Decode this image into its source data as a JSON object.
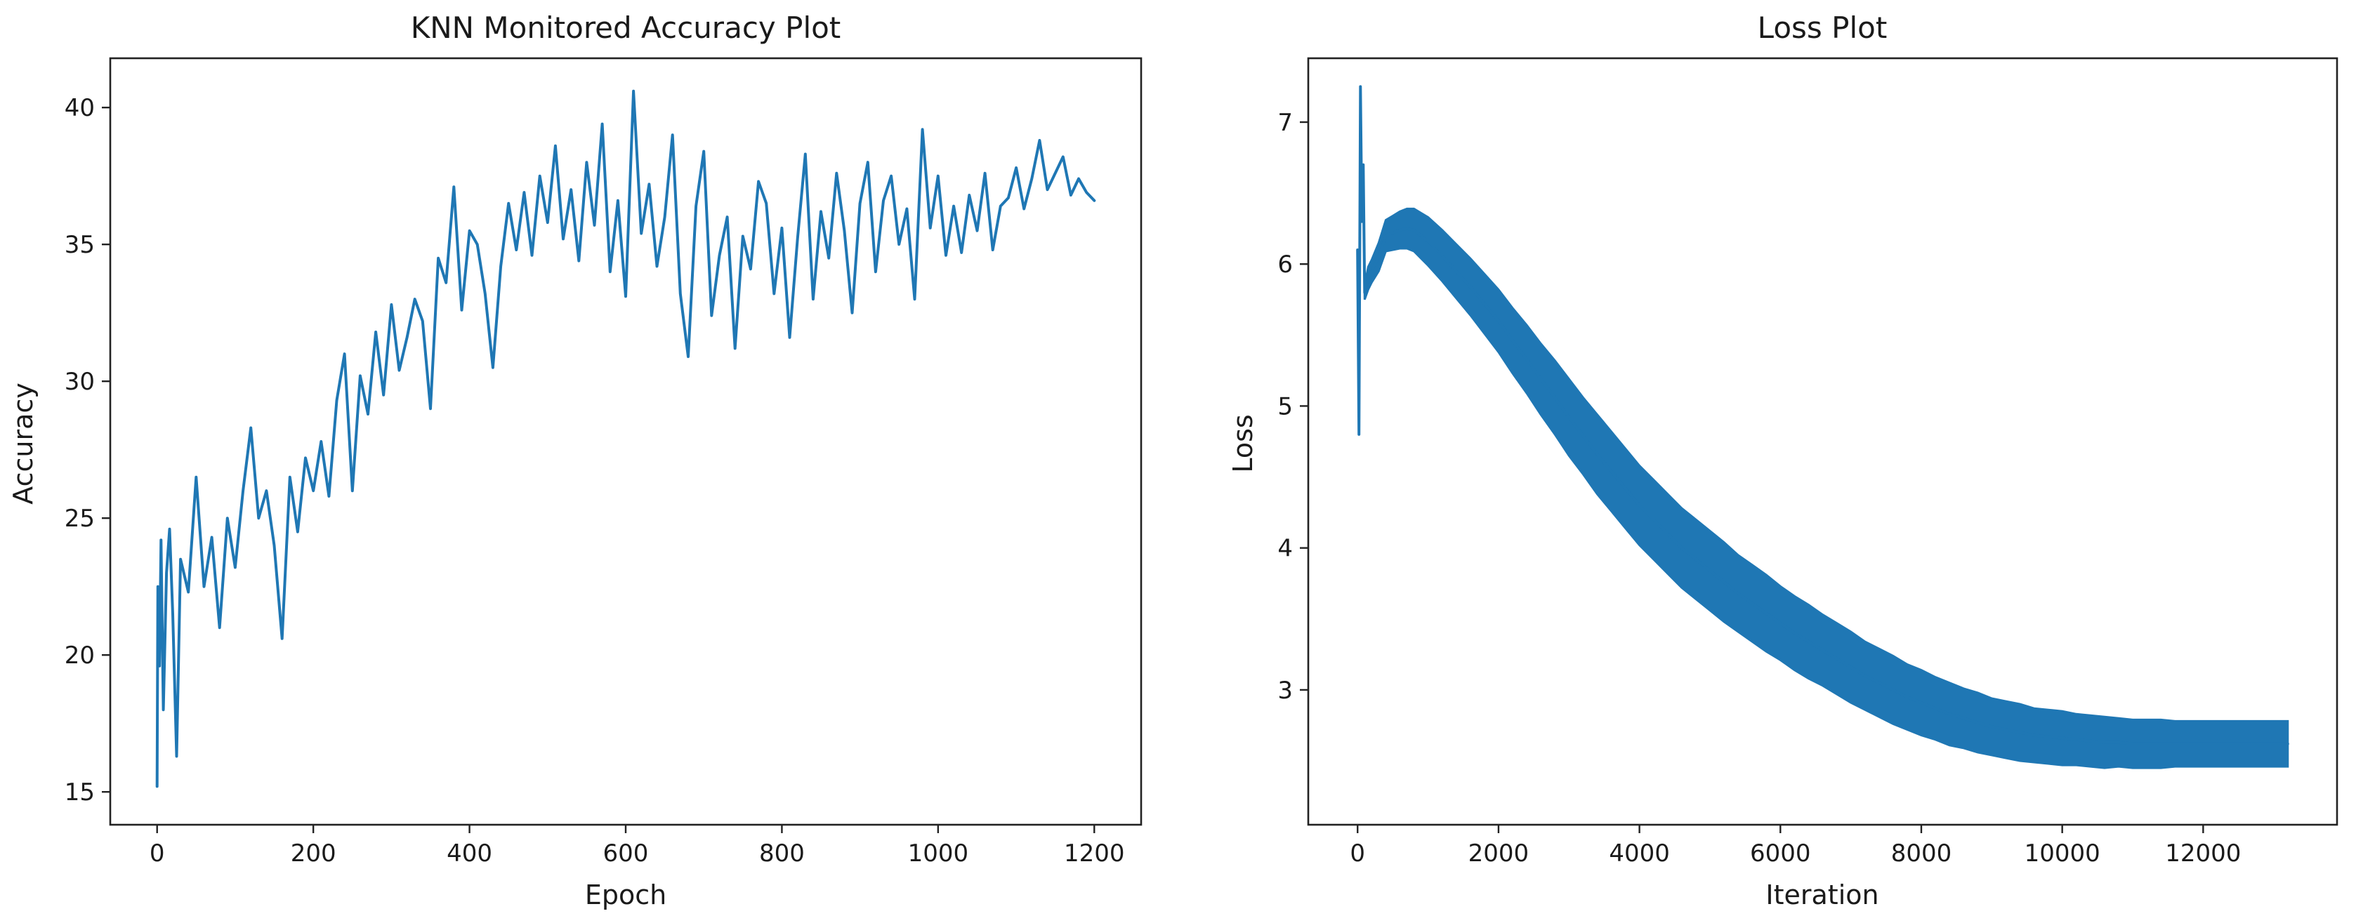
{
  "chart_data": [
    {
      "type": "line",
      "title": "KNN Monitored Accuracy Plot",
      "xlabel": "Epoch",
      "ylabel": "Accuracy",
      "xlim": [
        -60,
        1260
      ],
      "ylim": [
        13.8,
        41.8
      ],
      "xticks": [
        "0",
        "200",
        "400",
        "600",
        "800",
        "1000",
        "1200"
      ],
      "yticks": [
        "15",
        "20",
        "25",
        "30",
        "35",
        "40"
      ],
      "grid": false,
      "legend": "none",
      "color": "#1f77b4",
      "series": [
        {
          "x": [
            0,
            1,
            3,
            5,
            8,
            12,
            16,
            20,
            25,
            30,
            40,
            50,
            60,
            70,
            80,
            90,
            100,
            110,
            120,
            130,
            140,
            150,
            160,
            170,
            180,
            190,
            200,
            210,
            220,
            230,
            240,
            250,
            260,
            270,
            280,
            290,
            300,
            310,
            320,
            330,
            340,
            350,
            360,
            370,
            380,
            390,
            400,
            410,
            420,
            430,
            440,
            450,
            460,
            470,
            480,
            490,
            500,
            510,
            520,
            530,
            540,
            550,
            560,
            570,
            580,
            590,
            600,
            610,
            620,
            630,
            640,
            650,
            660,
            670,
            680,
            690,
            700,
            710,
            720,
            730,
            740,
            750,
            760,
            770,
            780,
            790,
            800,
            810,
            820,
            830,
            840,
            850,
            860,
            870,
            880,
            890,
            900,
            910,
            920,
            930,
            940,
            950,
            960,
            970,
            980,
            990,
            1000,
            1010,
            1020,
            1030,
            1040,
            1050,
            1060,
            1070,
            1080,
            1090,
            1100,
            1110,
            1120,
            1130,
            1140,
            1150,
            1160,
            1170,
            1180,
            1190,
            1200
          ],
          "y": [
            15.2,
            22.5,
            19.6,
            24.2,
            18.0,
            23.0,
            24.6,
            21.5,
            16.3,
            23.5,
            22.3,
            26.5,
            22.5,
            24.3,
            21.0,
            25.0,
            23.2,
            26.0,
            28.3,
            25.0,
            26.0,
            24.0,
            20.6,
            26.5,
            24.5,
            27.2,
            26.0,
            27.8,
            25.8,
            29.3,
            31.0,
            26.0,
            30.2,
            28.8,
            31.8,
            29.5,
            32.8,
            30.4,
            31.6,
            33.0,
            32.2,
            29.0,
            34.5,
            33.6,
            37.1,
            32.6,
            35.5,
            35.0,
            33.2,
            30.5,
            34.2,
            36.5,
            34.8,
            36.9,
            34.6,
            37.5,
            35.8,
            38.6,
            35.2,
            37.0,
            34.4,
            38.0,
            35.7,
            39.4,
            34.0,
            36.6,
            33.1,
            40.6,
            35.4,
            37.2,
            34.2,
            36.0,
            39.0,
            33.2,
            30.9,
            36.4,
            38.4,
            32.4,
            34.6,
            36.0,
            31.2,
            35.3,
            34.1,
            37.3,
            36.5,
            33.2,
            35.6,
            31.6,
            35.2,
            38.3,
            33.0,
            36.2,
            34.5,
            37.6,
            35.5,
            32.5,
            36.5,
            38.0,
            34.0,
            36.6,
            37.5,
            35.0,
            36.3,
            33.0,
            39.2,
            35.6,
            37.5,
            34.6,
            36.4,
            34.7,
            36.8,
            35.5,
            37.6,
            34.8,
            36.4,
            36.7,
            37.8,
            36.3,
            37.4,
            38.8,
            37.0,
            37.6,
            38.2,
            36.8,
            37.4,
            36.9,
            36.6
          ]
        }
      ]
    },
    {
      "type": "line",
      "title": "Loss Plot",
      "xlabel": "Iteration",
      "ylabel": "Loss",
      "xlim": [
        -700,
        13900
      ],
      "ylim": [
        2.05,
        7.45
      ],
      "xticks": [
        "0",
        "2000",
        "4000",
        "6000",
        "8000",
        "10000",
        "12000"
      ],
      "yticks": [
        "3",
        "4",
        "5",
        "6",
        "7"
      ],
      "grid": false,
      "legend": "none",
      "color": "#1f77b4",
      "series": [
        {
          "x": [
            0,
            20,
            40,
            60,
            80,
            100,
            150,
            200,
            300,
            400,
            500,
            600,
            700,
            800,
            900,
            1000,
            1200,
            1400,
            1600,
            1800,
            2000,
            2200,
            2400,
            2600,
            2800,
            3000,
            3200,
            3400,
            3600,
            3800,
            4000,
            4200,
            4400,
            4600,
            4800,
            5000,
            5200,
            5400,
            5600,
            5800,
            6000,
            6200,
            6400,
            6600,
            6800,
            7000,
            7200,
            7400,
            7600,
            7800,
            8000,
            8200,
            8400,
            8600,
            8800,
            9000,
            9200,
            9400,
            9600,
            9800,
            10000,
            10200,
            10400,
            10600,
            10800,
            11000,
            11200,
            11400,
            11600,
            11800,
            12000,
            12200,
            12400,
            12600,
            12800,
            13000,
            13200
          ],
          "y": [
            6.1,
            4.8,
            7.25,
            6.3,
            6.7,
            5.8,
            5.9,
            5.95,
            6.05,
            6.2,
            6.22,
            6.24,
            6.25,
            6.24,
            6.2,
            6.16,
            6.06,
            5.95,
            5.84,
            5.72,
            5.6,
            5.46,
            5.33,
            5.19,
            5.06,
            4.92,
            4.79,
            4.66,
            4.54,
            4.42,
            4.3,
            4.2,
            4.1,
            4.0,
            3.92,
            3.84,
            3.76,
            3.68,
            3.61,
            3.54,
            3.47,
            3.4,
            3.34,
            3.28,
            3.22,
            3.16,
            3.1,
            3.05,
            3.0,
            2.95,
            2.91,
            2.87,
            2.83,
            2.8,
            2.77,
            2.74,
            2.72,
            2.7,
            2.68,
            2.67,
            2.66,
            2.65,
            2.64,
            2.63,
            2.63,
            2.62,
            2.62,
            2.62,
            2.62,
            2.62,
            2.62,
            2.62,
            2.62,
            2.62,
            2.62,
            2.62,
            2.62
          ],
          "band_half_width": [
            0,
            0,
            0,
            0,
            0,
            0.05,
            0.08,
            0.08,
            0.1,
            0.11,
            0.12,
            0.13,
            0.14,
            0.15,
            0.16,
            0.17,
            0.18,
            0.19,
            0.2,
            0.21,
            0.22,
            0.23,
            0.24,
            0.25,
            0.26,
            0.27,
            0.27,
            0.28,
            0.28,
            0.28,
            0.28,
            0.28,
            0.28,
            0.28,
            0.28,
            0.28,
            0.28,
            0.27,
            0.27,
            0.27,
            0.26,
            0.26,
            0.26,
            0.25,
            0.25,
            0.25,
            0.24,
            0.24,
            0.24,
            0.23,
            0.23,
            0.22,
            0.22,
            0.21,
            0.21,
            0.2,
            0.2,
            0.2,
            0.19,
            0.19,
            0.19,
            0.18,
            0.18,
            0.18,
            0.17,
            0.17,
            0.17,
            0.17,
            0.16,
            0.16,
            0.16,
            0.16,
            0.16,
            0.16,
            0.16,
            0.16,
            0.16
          ]
        }
      ]
    }
  ]
}
